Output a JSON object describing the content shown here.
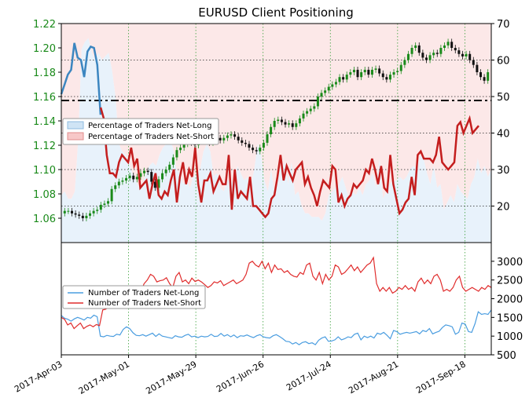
{
  "chart_data": [
    {
      "type": "candlestick+area+line",
      "title": "EURUSD Client Positioning",
      "x_tick_labels": [
        "2017-Apr-03",
        "2017-May-01",
        "2017-May-29",
        "2017-Jun-26",
        "2017-Jul-24",
        "2017-Aug-21",
        "2017-Sep-18"
      ],
      "x_range": [
        "2017-04-03",
        "2017-09-29"
      ],
      "left_axis": {
        "ylim": [
          1.04,
          1.22
        ],
        "ticks": [
          "1.06",
          "1.08",
          "1.10",
          "1.12",
          "1.14",
          "1.16",
          "1.18",
          "1.20",
          "1.22"
        ],
        "tick_color": "#1a8a1a"
      },
      "right_axis": {
        "ylim": [
          10,
          70
        ],
        "ticks": [
          "20",
          "30",
          "40",
          "50",
          "60",
          "70"
        ]
      },
      "reference_line": {
        "axis": "right",
        "value": 50,
        "style": "dash-dot"
      },
      "legend": {
        "placement": "upper-left",
        "entries": [
          {
            "label": "Percentage of Traders Net-Long",
            "color": "#cfe4f5"
          },
          {
            "label": "Percentage of Traders Net-Short",
            "color": "#f7c8c8"
          }
        ]
      },
      "price_close": [
        1.066,
        1.066,
        1.064,
        1.063,
        1.062,
        1.06,
        1.062,
        1.064,
        1.066,
        1.067,
        1.071,
        1.072,
        1.074,
        1.084,
        1.087,
        1.09,
        1.091,
        1.093,
        1.095,
        1.092,
        1.094,
        1.097,
        1.099,
        1.098,
        1.09,
        1.085,
        1.092,
        1.097,
        1.1,
        1.104,
        1.11,
        1.116,
        1.118,
        1.121,
        1.124,
        1.122,
        1.12,
        1.125,
        1.127,
        1.123,
        1.122,
        1.124,
        1.126,
        1.124,
        1.126,
        1.128,
        1.129,
        1.127,
        1.124,
        1.122,
        1.121,
        1.118,
        1.116,
        1.115,
        1.118,
        1.122,
        1.129,
        1.135,
        1.14,
        1.141,
        1.139,
        1.137,
        1.138,
        1.135,
        1.138,
        1.142,
        1.146,
        1.148,
        1.15,
        1.152,
        1.16,
        1.163,
        1.165,
        1.168,
        1.17,
        1.172,
        1.176,
        1.174,
        1.178,
        1.18,
        1.182,
        1.176,
        1.18,
        1.182,
        1.178,
        1.182,
        1.183,
        1.179,
        1.176,
        1.174,
        1.178,
        1.18,
        1.181,
        1.186,
        1.19,
        1.195,
        1.2,
        1.202,
        1.196,
        1.192,
        1.19,
        1.194,
        1.196,
        1.195,
        1.2,
        1.202,
        1.205,
        1.2,
        1.198,
        1.195,
        1.193,
        1.195,
        1.19,
        1.186,
        1.18,
        1.176,
        1.173,
        1.18
      ],
      "net_long_pct_series": [
        {
          "name": "blue segment",
          "values": [
            1.162,
            1.17,
            1.178,
            1.182,
            1.204,
            1.192,
            1.19,
            1.176,
            1.197,
            1.201,
            1.2,
            1.186,
            1.145
          ]
        }
      ],
      "net_long_pct_area": [
        23,
        24,
        22,
        22,
        24,
        38,
        63,
        65,
        66,
        62,
        60,
        62,
        60,
        61,
        62,
        57,
        50,
        37,
        35,
        34,
        32,
        29,
        27,
        25,
        26,
        29,
        31,
        32,
        31,
        34,
        36,
        37,
        38,
        36,
        30,
        29,
        26,
        27,
        25,
        28,
        29,
        30,
        35,
        37,
        35,
        28,
        29,
        25,
        24,
        27,
        27,
        26,
        31,
        29,
        27,
        28,
        26,
        30,
        37,
        34,
        27,
        24,
        30,
        23,
        31,
        30,
        32,
        26,
        32,
        23,
        24,
        20,
        18,
        18,
        17,
        17,
        17,
        16,
        18,
        23,
        24,
        25,
        26,
        28,
        25,
        22,
        24,
        23,
        25,
        23,
        26,
        27,
        29,
        25,
        33,
        22,
        24,
        26,
        27,
        27,
        28,
        27,
        28,
        30,
        31,
        30,
        34,
        33,
        29,
        26,
        31,
        25,
        26,
        19,
        21,
        23,
        21,
        26,
        24,
        23,
        22,
        26,
        28,
        33,
        29,
        31,
        28,
        30
      ],
      "net_short_pct_series": [
        {
          "name": "red line",
          "values": [
            47,
            44,
            34,
            29,
            29,
            28,
            32,
            34,
            33,
            32,
            36,
            31,
            33,
            25,
            26,
            27,
            22,
            26,
            29,
            23,
            22,
            24,
            23,
            27,
            30,
            21,
            28,
            32,
            26,
            30,
            28,
            36,
            26,
            21,
            27,
            27,
            29,
            24,
            26,
            28,
            26,
            26,
            34,
            19,
            30,
            22,
            24,
            23,
            22,
            28,
            20,
            20,
            19,
            18,
            17,
            18,
            22,
            23,
            28,
            34,
            27,
            31,
            29,
            27,
            30,
            31,
            32,
            26,
            28,
            25,
            23,
            20,
            24,
            27,
            26,
            25,
            31,
            30,
            21,
            23,
            20,
            22,
            23,
            26,
            25,
            26,
            27,
            30,
            29,
            33,
            30,
            26,
            31,
            25,
            24,
            34,
            26,
            22,
            18,
            19,
            21,
            22,
            28,
            23,
            34,
            35,
            33,
            33,
            33,
            32,
            34,
            39,
            32,
            31,
            30,
            31,
            32,
            42,
            43,
            40,
            42,
            44,
            40,
            41,
            42
          ]
        }
      ]
    },
    {
      "type": "line",
      "title": "",
      "right_axis": {
        "ylim": [
          500,
          3500
        ],
        "ticks": [
          "500",
          "1000",
          "1500",
          "2000",
          "2500",
          "3000"
        ]
      },
      "legend": {
        "placement": "upper-left",
        "entries": [
          {
            "label": "Number of Traders Net-Long",
            "color": "#4a9de0"
          },
          {
            "label": "Number of Traders Net-Short",
            "color": "#e02c2c"
          }
        ]
      },
      "series": [
        {
          "name": "Number of Traders Net-Long",
          "color": "#4a9de0",
          "values": [
            1550,
            1480,
            1450,
            1400,
            1460,
            1500,
            1470,
            1430,
            1500,
            1480,
            1560,
            1520,
            1000,
            980,
            1020,
            1000,
            990,
            1050,
            1030,
            1180,
            1250,
            1200,
            1090,
            1020,
            1010,
            1040,
            1000,
            1040,
            1080,
            990,
            1060,
            1000,
            980,
            960,
            940,
            1010,
            980,
            970,
            1020,
            1050,
            980,
            1000,
            960,
            1000,
            980,
            990,
            1050,
            990,
            1000,
            1070,
            1000,
            1040,
            980,
            1030,
            960,
            1010,
            1000,
            1030,
            990,
            960,
            1010,
            1040,
            980,
            960,
            950,
            1010,
            1040,
            990,
            930,
            860,
            850,
            790,
            830,
            770,
            830,
            850,
            800,
            820,
            770,
            890,
            950,
            980,
            860,
            870,
            900,
            980,
            900,
            930,
            980,
            960,
            1050,
            1080,
            900,
            1000,
            960,
            1000,
            950,
            1080,
            1050,
            1100,
            1020,
            930,
            1150,
            1120,
            1050,
            1080,
            1100,
            1080,
            1100,
            1120,
            1060,
            1150,
            1120,
            1200,
            1060,
            1100,
            1130,
            1230,
            1300,
            1280,
            1250,
            1050,
            1100,
            1350,
            1320,
            1120,
            1100,
            1330,
            1650,
            1580,
            1600,
            1580,
            1700
          ]
        },
        {
          "name": "Number of Traders Net-Short",
          "color": "#e02c2c",
          "values": [
            1500,
            1450,
            1300,
            1350,
            1200,
            1280,
            1350,
            1200,
            1260,
            1300,
            1250,
            1310,
            1280,
            1700,
            1720,
            1800,
            1750,
            1780,
            1900,
            1950,
            2000,
            2100,
            2150,
            2200,
            2250,
            2200,
            2400,
            2500,
            2650,
            2600,
            2450,
            2480,
            2500,
            2560,
            2400,
            2300,
            2600,
            2700,
            2450,
            2500,
            2400,
            2550,
            2460,
            2500,
            2450,
            2380,
            2300,
            2350,
            2450,
            2420,
            2480,
            2350,
            2400,
            2450,
            2500,
            2400,
            2450,
            2500,
            2650,
            2950,
            3000,
            2900,
            2850,
            3000,
            2800,
            2950,
            2700,
            2900,
            2780,
            2800,
            2700,
            2750,
            2650,
            2600,
            2580,
            2700,
            2650,
            2900,
            2950,
            2600,
            2500,
            2700,
            2400,
            2650,
            2500,
            2600,
            2900,
            2850,
            2650,
            2700,
            2800,
            2900,
            2750,
            2850,
            2700,
            2800,
            2900,
            2950,
            3100,
            2400,
            2200,
            2300,
            2200,
            2300,
            2150,
            2200,
            2300,
            2250,
            2350,
            2250,
            2300,
            2200,
            2450,
            2550,
            2400,
            2500,
            2400,
            2600,
            2650,
            2500,
            2200,
            2250,
            2200,
            2300,
            2500,
            2600,
            2300,
            2200,
            2250,
            2300,
            2250,
            2200,
            2300,
            2250,
            2350,
            2300
          ]
        }
      ]
    }
  ]
}
